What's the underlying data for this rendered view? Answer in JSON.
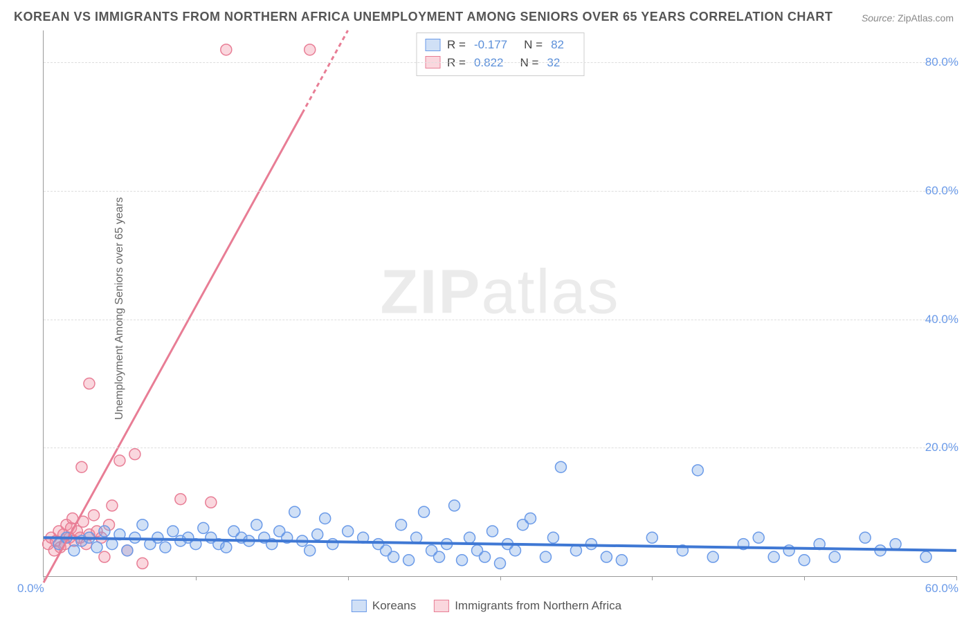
{
  "title": "KOREAN VS IMMIGRANTS FROM NORTHERN AFRICA UNEMPLOYMENT AMONG SENIORS OVER 65 YEARS CORRELATION CHART",
  "source_prefix": "Source: ",
  "source_name": "ZipAtlas.com",
  "ylabel": "Unemployment Among Seniors over 65 years",
  "watermark_bold": "ZIP",
  "watermark_light": "atlas",
  "chart": {
    "type": "scatter",
    "xlim": [
      0,
      60
    ],
    "ylim": [
      0,
      85
    ],
    "ytick_values": [
      20,
      40,
      60,
      80
    ],
    "ytick_labels": [
      "20.0%",
      "40.0%",
      "60.0%",
      "80.0%"
    ],
    "xtick_positions": [
      0,
      10,
      20,
      30,
      40,
      50,
      60
    ],
    "xtick_origin_label": "0.0%",
    "xtick_end_label": "60.0%",
    "grid_color": "#dddddd",
    "marker_radius": 8,
    "marker_stroke_width": 1.5,
    "trend_line_width": 3,
    "series": [
      {
        "id": "koreans",
        "label": "Koreans",
        "fill": "rgba(120,165,230,0.35)",
        "stroke": "#6a9ae8",
        "points": [
          [
            1,
            5
          ],
          [
            1.5,
            6
          ],
          [
            2,
            4
          ],
          [
            2.5,
            5.5
          ],
          [
            3,
            6
          ],
          [
            3.5,
            4.5
          ],
          [
            4,
            7
          ],
          [
            4.5,
            5
          ],
          [
            5,
            6.5
          ],
          [
            5.5,
            4
          ],
          [
            6,
            6
          ],
          [
            6.5,
            8
          ],
          [
            7,
            5
          ],
          [
            7.5,
            6
          ],
          [
            8,
            4.5
          ],
          [
            8.5,
            7
          ],
          [
            9,
            5.5
          ],
          [
            9.5,
            6
          ],
          [
            10,
            5
          ],
          [
            10.5,
            7.5
          ],
          [
            11,
            6
          ],
          [
            11.5,
            5
          ],
          [
            12,
            4.5
          ],
          [
            12.5,
            7
          ],
          [
            13,
            6
          ],
          [
            13.5,
            5.5
          ],
          [
            14,
            8
          ],
          [
            14.5,
            6
          ],
          [
            15,
            5
          ],
          [
            15.5,
            7
          ],
          [
            16,
            6
          ],
          [
            16.5,
            10
          ],
          [
            17,
            5.5
          ],
          [
            17.5,
            4
          ],
          [
            18,
            6.5
          ],
          [
            18.5,
            9
          ],
          [
            19,
            5
          ],
          [
            20,
            7
          ],
          [
            21,
            6
          ],
          [
            22,
            5
          ],
          [
            22.5,
            4
          ],
          [
            23,
            3
          ],
          [
            23.5,
            8
          ],
          [
            24,
            2.5
          ],
          [
            24.5,
            6
          ],
          [
            25,
            10
          ],
          [
            25.5,
            4
          ],
          [
            26,
            3
          ],
          [
            26.5,
            5
          ],
          [
            27,
            11
          ],
          [
            27.5,
            2.5
          ],
          [
            28,
            6
          ],
          [
            28.5,
            4
          ],
          [
            29,
            3
          ],
          [
            29.5,
            7
          ],
          [
            30,
            2
          ],
          [
            30.5,
            5
          ],
          [
            31,
            4
          ],
          [
            31.5,
            8
          ],
          [
            32,
            9
          ],
          [
            33,
            3
          ],
          [
            33.5,
            6
          ],
          [
            34,
            17
          ],
          [
            35,
            4
          ],
          [
            36,
            5
          ],
          [
            37,
            3
          ],
          [
            38,
            2.5
          ],
          [
            40,
            6
          ],
          [
            42,
            4
          ],
          [
            43,
            16.5
          ],
          [
            44,
            3
          ],
          [
            46,
            5
          ],
          [
            47,
            6
          ],
          [
            48,
            3
          ],
          [
            49,
            4
          ],
          [
            50,
            2.5
          ],
          [
            51,
            5
          ],
          [
            52,
            3
          ],
          [
            54,
            6
          ],
          [
            55,
            4
          ],
          [
            56,
            5
          ],
          [
            58,
            3
          ]
        ],
        "trend": {
          "x1": 0,
          "y1": 6.0,
          "x2": 60,
          "y2": 4.0
        }
      },
      {
        "id": "northern_africa",
        "label": "Immigrants from Northern Africa",
        "fill": "rgba(240,140,160,0.35)",
        "stroke": "#e87d95",
        "points": [
          [
            0.3,
            5
          ],
          [
            0.5,
            6
          ],
          [
            0.7,
            4
          ],
          [
            0.8,
            5.5
          ],
          [
            1,
            7
          ],
          [
            1.1,
            4.5
          ],
          [
            1.3,
            6.5
          ],
          [
            1.4,
            5
          ],
          [
            1.5,
            8
          ],
          [
            1.7,
            6
          ],
          [
            1.8,
            7.5
          ],
          [
            1.9,
            9
          ],
          [
            2,
            5.5
          ],
          [
            2.2,
            7
          ],
          [
            2.4,
            6
          ],
          [
            2.6,
            8.5
          ],
          [
            2.8,
            5
          ],
          [
            3,
            6.5
          ],
          [
            3.3,
            9.5
          ],
          [
            3.5,
            7
          ],
          [
            3.8,
            6
          ],
          [
            4,
            3
          ],
          [
            4.3,
            8
          ],
          [
            4.5,
            11
          ],
          [
            5,
            18
          ],
          [
            5.5,
            4
          ],
          [
            6,
            19
          ],
          [
            6.5,
            2
          ],
          [
            2.5,
            17
          ],
          [
            9,
            12
          ],
          [
            3,
            30
          ],
          [
            11,
            11.5
          ]
        ],
        "outliers": [
          [
            12,
            82
          ],
          [
            17.5,
            82
          ]
        ],
        "trend": {
          "x1": 0,
          "y1": -1,
          "x2": 20,
          "y2": 85
        },
        "trend_dashed_from_x": 17
      }
    ]
  },
  "stats": [
    {
      "series": "koreans",
      "r_label": "R = ",
      "r_value": "-0.177",
      "n_label": "N = ",
      "n_value": "82"
    },
    {
      "series": "northern_africa",
      "r_label": "R = ",
      "r_value": "0.822",
      "n_label": "N = ",
      "n_value": "32"
    }
  ],
  "colors": {
    "blue_fill": "rgba(120,165,230,0.35)",
    "blue_stroke": "#6a9ae8",
    "pink_fill": "rgba(240,140,160,0.35)",
    "pink_stroke": "#e87d95",
    "axis_label": "#6a9ae8",
    "text": "#555555"
  }
}
